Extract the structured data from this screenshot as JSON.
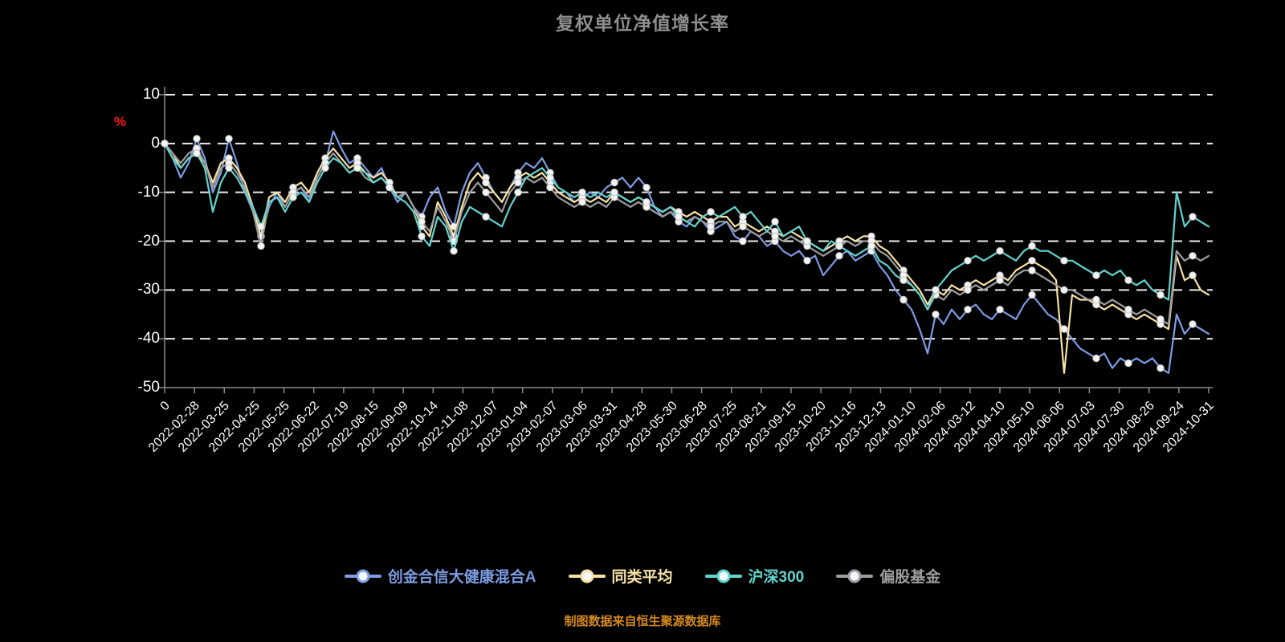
{
  "title": "复权单位净值增长率",
  "footer": "制图数据来自恒生聚源数据库",
  "y_axis": {
    "unit": "%",
    "ticks": [
      10,
      0,
      -10,
      -20,
      -30,
      -40,
      -50
    ]
  },
  "chart_data": {
    "type": "line",
    "title": "复权单位净值增长率",
    "ylabel": "%",
    "ylim": [
      -50,
      10
    ],
    "grid": "horizontal-dashed",
    "legend_position": "bottom",
    "x_tick_labels": [
      "0",
      "2022-02-28",
      "2022-03-25",
      "2022-04-25",
      "2022-05-25",
      "2022-06-22",
      "2022-07-19",
      "2022-08-15",
      "2022-09-09",
      "2022-10-14",
      "2022-11-08",
      "2022-12-07",
      "2023-01-04",
      "2023-02-07",
      "2023-03-06",
      "2023-03-31",
      "2023-04-28",
      "2023-05-30",
      "2023-06-28",
      "2023-07-25",
      "2023-08-21",
      "2023-09-15",
      "2023-10-20",
      "2023-11-16",
      "2023-12-13",
      "2024-01-10",
      "2024-02-06",
      "2024-03-12",
      "2024-04-10",
      "2024-05-10",
      "2024-06-06",
      "2024-07-03",
      "2024-07-30",
      "2024-08-26",
      "2024-09-24",
      "2024-10-31"
    ],
    "series": [
      {
        "name": "创金合信大健康混合A",
        "color": "#7d9ce4",
        "values": [
          0,
          -3,
          -7,
          -4,
          1,
          -3,
          -10,
          -6,
          1,
          -4,
          -10,
          -14,
          -19,
          -13,
          -10,
          -13,
          -10,
          -9,
          -12,
          -7,
          -4,
          2.5,
          -1,
          -4,
          -3,
          -5,
          -7,
          -5,
          -9,
          -12,
          -10,
          -13,
          -15,
          -11,
          -9,
          -14,
          -17,
          -10,
          -6,
          -4,
          -7,
          -10,
          -12,
          -9,
          -6,
          -4,
          -5,
          -3,
          -6,
          -9,
          -10,
          -12,
          -11,
          -10,
          -11,
          -9,
          -8,
          -7,
          -9,
          -7,
          -9,
          -13,
          -15,
          -14,
          -16,
          -17,
          -15,
          -16,
          -18,
          -17,
          -16,
          -19,
          -20,
          -18,
          -19,
          -21,
          -20,
          -22,
          -23,
          -22,
          -24,
          -23,
          -27,
          -25,
          -23,
          -22,
          -24,
          -23,
          -22,
          -25,
          -27,
          -30,
          -32,
          -34,
          -38,
          -43,
          -35,
          -37,
          -34,
          -36,
          -34,
          -33,
          -35,
          -36,
          -34,
          -35,
          -36,
          -33,
          -31,
          -33,
          -35,
          -36,
          -38,
          -40,
          -42,
          -43,
          -44,
          -43,
          -46,
          -44,
          -45,
          -44,
          -45,
          -44,
          -46,
          -47,
          -35,
          -39,
          -37,
          -38,
          -39
        ]
      },
      {
        "name": "同类平均",
        "color": "#f8e2a4",
        "values": [
          0,
          -2,
          -5,
          -3,
          -2,
          -4,
          -8,
          -4,
          -3,
          -5,
          -8,
          -13,
          -19,
          -11,
          -10,
          -12,
          -9,
          -8,
          -10,
          -6,
          -3,
          -1,
          -3,
          -5,
          -4,
          -6,
          -7,
          -6,
          -8,
          -11,
          -10,
          -13,
          -17,
          -19,
          -12,
          -15,
          -19,
          -13,
          -8,
          -6,
          -8,
          -10,
          -12,
          -9,
          -7,
          -6,
          -7,
          -6,
          -8,
          -10,
          -11,
          -12,
          -11,
          -12,
          -11,
          -12,
          -10,
          -11,
          -12,
          -11,
          -12,
          -13,
          -14,
          -13,
          -14,
          -15,
          -14,
          -15,
          -16,
          -15,
          -15,
          -17,
          -16,
          -17,
          -18,
          -17,
          -18,
          -19,
          -18,
          -19,
          -20,
          -21,
          -22,
          -21,
          -20,
          -19,
          -20,
          -19,
          -19,
          -21,
          -22,
          -24,
          -26,
          -28,
          -30,
          -33,
          -30,
          -31,
          -29,
          -30,
          -29,
          -28,
          -29,
          -28,
          -27,
          -28,
          -26,
          -25,
          -24,
          -25,
          -26,
          -28,
          -47,
          -31,
          -32,
          -32,
          -33,
          -34,
          -33,
          -34,
          -35,
          -36,
          -35,
          -36,
          -37,
          -38,
          -23,
          -28,
          -27,
          -30,
          -31
        ]
      },
      {
        "name": "沪深300",
        "color": "#62d4ce",
        "values": [
          0,
          -3,
          -5,
          -3,
          -2,
          -5,
          -14,
          -8,
          -5,
          -7,
          -10,
          -13,
          -17,
          -12,
          -11,
          -14,
          -11,
          -10,
          -12,
          -8,
          -5,
          -3,
          -4,
          -6,
          -5,
          -6,
          -8,
          -7,
          -9,
          -11,
          -12,
          -14,
          -19,
          -21,
          -15,
          -17,
          -22,
          -16,
          -13,
          -14,
          -15,
          -16,
          -17,
          -13,
          -10,
          -7,
          -6,
          -5,
          -7,
          -9,
          -10,
          -11,
          -10,
          -11,
          -10,
          -11,
          -10,
          -11,
          -12,
          -11,
          -12,
          -13,
          -14,
          -13,
          -15,
          -16,
          -17,
          -15,
          -14,
          -15,
          -14,
          -13,
          -15,
          -14,
          -16,
          -18,
          -16,
          -19,
          -18,
          -17,
          -20,
          -21,
          -22,
          -20,
          -21,
          -22,
          -23,
          -22,
          -21,
          -24,
          -25,
          -27,
          -28,
          -29,
          -31,
          -34,
          -30,
          -28,
          -26,
          -25,
          -24,
          -23,
          -24,
          -23,
          -22,
          -23,
          -24,
          -22,
          -21,
          -22,
          -22,
          -23,
          -24,
          -24,
          -25,
          -26,
          -27,
          -26,
          -27,
          -26,
          -28,
          -29,
          -28,
          -30,
          -31,
          -32,
          -10,
          -17,
          -15,
          -16,
          -17
        ]
      },
      {
        "name": "偏股基金",
        "color": "#9d9d9d",
        "values": [
          0,
          -2,
          -4,
          -2,
          -1,
          -4,
          -9,
          -5,
          -4,
          -6,
          -9,
          -14,
          -21,
          -12,
          -11,
          -13,
          -10,
          -9,
          -11,
          -7,
          -4,
          -2,
          -4,
          -6,
          -5,
          -7,
          -8,
          -7,
          -9,
          -11,
          -10,
          -13,
          -16,
          -18,
          -13,
          -16,
          -20,
          -14,
          -10,
          -8,
          -10,
          -12,
          -14,
          -10,
          -8,
          -7,
          -8,
          -7,
          -9,
          -11,
          -12,
          -13,
          -12,
          -13,
          -12,
          -13,
          -11,
          -12,
          -13,
          -12,
          -13,
          -14,
          -15,
          -14,
          -15,
          -16,
          -15,
          -16,
          -17,
          -16,
          -16,
          -18,
          -17,
          -18,
          -19,
          -18,
          -19,
          -20,
          -19,
          -20,
          -21,
          -22,
          -23,
          -22,
          -21,
          -20,
          -21,
          -20,
          -20,
          -22,
          -23,
          -25,
          -27,
          -29,
          -31,
          -34,
          -31,
          -32,
          -30,
          -31,
          -30,
          -29,
          -30,
          -29,
          -28,
          -29,
          -27,
          -26,
          -26,
          -27,
          -28,
          -29,
          -30,
          -30,
          -31,
          -32,
          -32,
          -33,
          -32,
          -33,
          -34,
          -35,
          -34,
          -35,
          -36,
          -37,
          -22,
          -24,
          -23,
          -24,
          -23
        ]
      }
    ]
  }
}
